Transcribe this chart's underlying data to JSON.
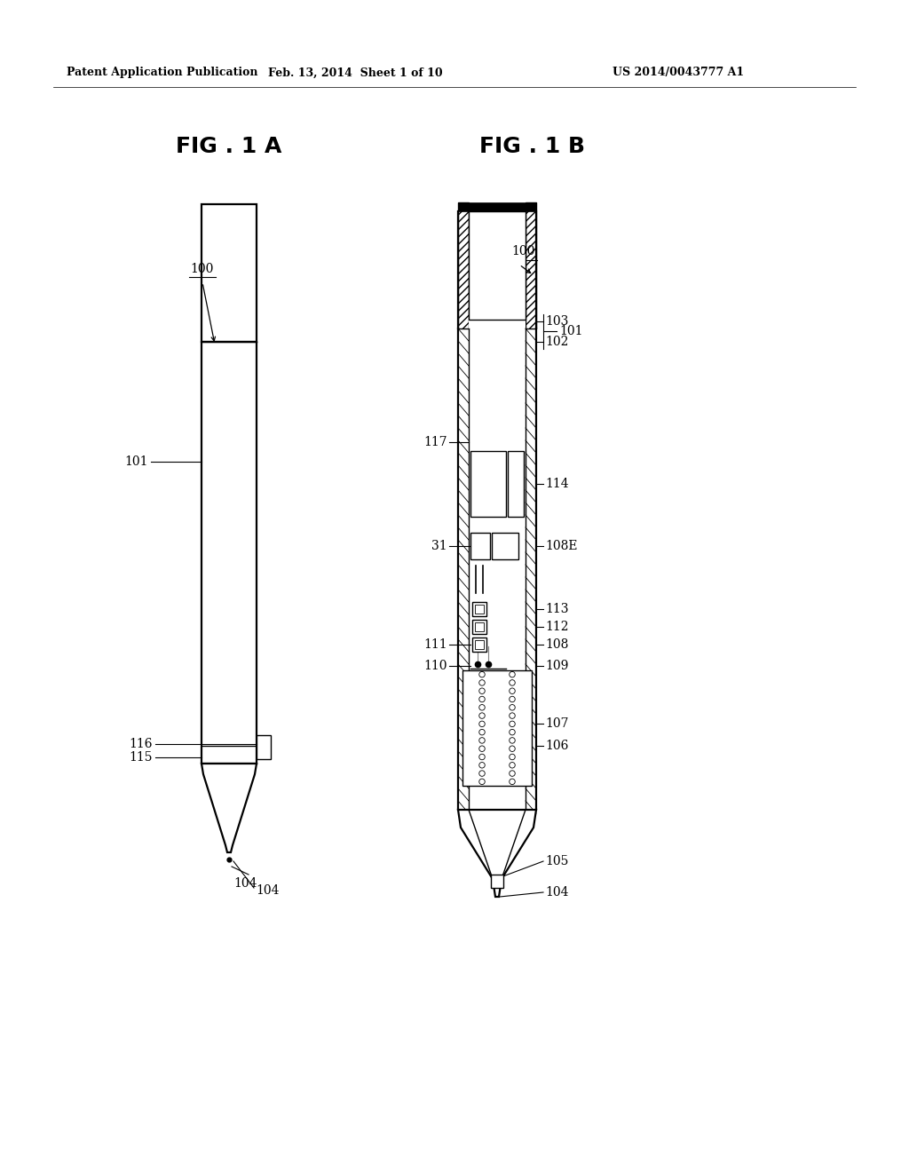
{
  "bg_color": "#ffffff",
  "header_left": "Patent Application Publication",
  "header_mid": "Feb. 13, 2014  Sheet 1 of 10",
  "header_right": "US 2014/0043777 A1",
  "fig1a_title": "FIG . 1 A",
  "fig1b_title": "FIG . 1 B",
  "label_fontsize": 10,
  "header_fontsize": 9,
  "title_fontsize": 18
}
